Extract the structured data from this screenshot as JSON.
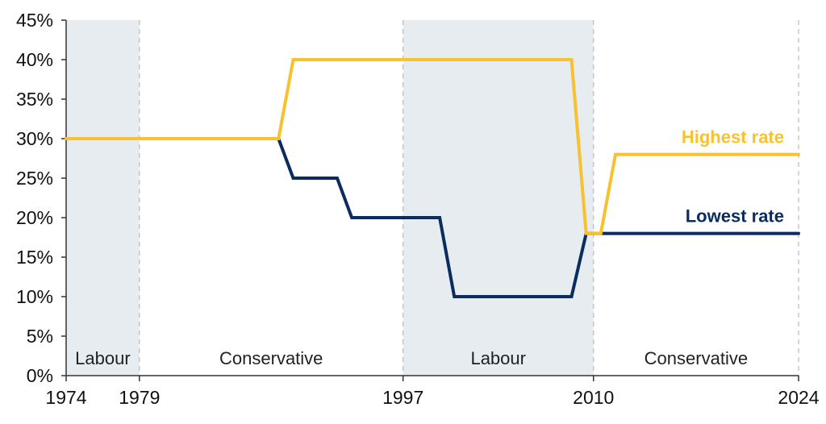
{
  "chart_data": {
    "type": "line",
    "title": "",
    "xlabel": "",
    "ylabel": "",
    "xlim": [
      1974,
      2024
    ],
    "ylim": [
      0,
      45
    ],
    "y_ticks": [
      0,
      5,
      10,
      15,
      20,
      25,
      30,
      35,
      40,
      45
    ],
    "y_tick_labels": [
      "0%",
      "5%",
      "10%",
      "15%",
      "20%",
      "25%",
      "30%",
      "35%",
      "40%",
      "45%"
    ],
    "x_ticks": [
      1974,
      1979,
      1997,
      2010,
      2024
    ],
    "x_tick_labels": [
      "1974",
      "1979",
      "1997",
      "2010",
      "2024"
    ],
    "periods": [
      {
        "label": "Labour",
        "start": 1974,
        "end": 1979,
        "shaded": true
      },
      {
        "label": "Conservative",
        "start": 1979,
        "end": 1997,
        "shaded": false
      },
      {
        "label": "Labour",
        "start": 1997,
        "end": 2010,
        "shaded": true
      },
      {
        "label": "Conservative",
        "start": 2010,
        "end": 2024,
        "shaded": false
      }
    ],
    "series": [
      {
        "name": "Highest rate",
        "color": "#F7C12F",
        "points": [
          [
            1974,
            30
          ],
          [
            1988.5,
            30
          ],
          [
            1989.5,
            40
          ],
          [
            2008.5,
            40
          ],
          [
            2009.5,
            18
          ],
          [
            2010.5,
            18
          ],
          [
            2011.5,
            28
          ],
          [
            2024,
            28
          ]
        ]
      },
      {
        "name": "Lowest rate",
        "color": "#0B2D5E",
        "points": [
          [
            1974,
            30
          ],
          [
            1988.5,
            30
          ],
          [
            1989.5,
            25
          ],
          [
            1992.5,
            25
          ],
          [
            1993.5,
            20
          ],
          [
            1999.5,
            20
          ],
          [
            2000.5,
            10
          ],
          [
            2008.5,
            10
          ],
          [
            2009.5,
            18
          ],
          [
            2024,
            18
          ]
        ]
      }
    ],
    "grid": false,
    "legend": "inline labels at right end of lines",
    "colors": {
      "shade": "#E6ECEF",
      "divider": "#BBBBBB",
      "axis": "#333333"
    }
  }
}
